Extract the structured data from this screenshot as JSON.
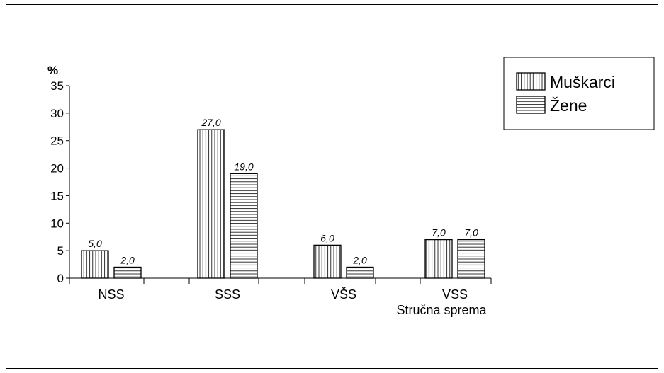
{
  "chart_data": {
    "type": "bar",
    "ylabel": "%",
    "xlabel": "Stručna sprema",
    "ylim": [
      0,
      35
    ],
    "yticks": [
      0,
      5,
      10,
      15,
      20,
      25,
      30,
      35
    ],
    "categories": [
      "NSS",
      "SSS",
      "VŠS",
      "VSS"
    ],
    "series": [
      {
        "name": "Muškarci",
        "pattern": "vertical-lines",
        "values": [
          5.0,
          27.0,
          6.0,
          7.0
        ],
        "value_labels": [
          "5,0",
          "27,0",
          "6,0",
          "7,0"
        ]
      },
      {
        "name": "Žene",
        "pattern": "horizontal-lines",
        "values": [
          2.0,
          19.0,
          2.0,
          7.0
        ],
        "value_labels": [
          "2,0",
          "19,0",
          "2,0",
          "7,0"
        ]
      }
    ],
    "grid": false,
    "legend_position": "top-right"
  }
}
